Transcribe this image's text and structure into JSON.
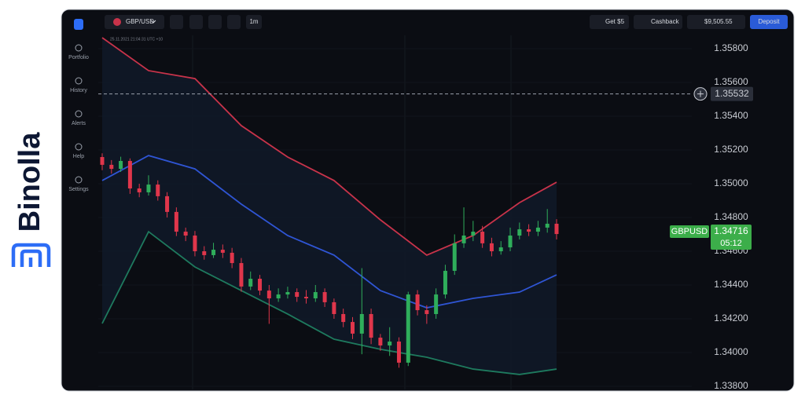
{
  "brand": "Binolla",
  "sidebar": [
    "Portfolio",
    "History",
    "Alerts",
    "Help",
    "Settings"
  ],
  "topbar": {
    "pair": "GBP/USD",
    "timeframe": "1m",
    "bonus": "Get $5",
    "cashback": "Cashback",
    "balance": "$9,505.55",
    "deposit": "Deposit"
  },
  "chart_data": {
    "type": "candlestick",
    "timestamp": "25.11.2021 21:04:31 UTC +10",
    "symbol": "GBPUSD",
    "timer": "05:12",
    "current_price": 1.35532,
    "last_price": 1.34716,
    "ylim": [
      1.3378,
      1.3588
    ],
    "yticks": [
      {
        "value": 1.358,
        "label": "1.35800"
      },
      {
        "value": 1.356,
        "label": "1.35600"
      },
      {
        "value": 1.354,
        "label": "1.35400"
      },
      {
        "value": 1.352,
        "label": "1.35200"
      },
      {
        "value": 1.35,
        "label": "1.35000"
      },
      {
        "value": 1.348,
        "label": "1.34800"
      },
      {
        "value": 1.346,
        "label": "1.34600"
      },
      {
        "value": 1.344,
        "label": "1.34400"
      },
      {
        "value": 1.342,
        "label": "1.34200"
      },
      {
        "value": 1.34,
        "label": "1.34000"
      },
      {
        "value": 1.338,
        "label": "1.33800"
      }
    ],
    "grid": true,
    "up_color": "#2fae5b",
    "down_color": "#e0364b",
    "open": [
      1.35158,
      1.35112,
      1.35088,
      1.35135,
      1.34972,
      1.34949,
      1.34995,
      1.34926,
      1.34833,
      1.34716,
      1.34693,
      1.346,
      1.34577,
      1.34609,
      1.34591,
      1.3453,
      1.34391,
      1.34437,
      1.34367,
      1.34321,
      1.34344,
      1.34358,
      1.3433,
      1.34321,
      1.34358,
      1.34298,
      1.34228,
      1.34181,
      1.34112,
      1.34228,
      1.34088,
      1.34042,
      1.34065,
      1.3394,
      1.34344,
      1.34251,
      1.34228,
      1.34344,
      1.34484,
      1.34647,
      1.34693,
      1.34716,
      1.34647,
      1.346,
      1.34623,
      1.34693,
      1.3473,
      1.34716,
      1.3474,
      1.34763
    ],
    "high": [
      1.3518,
      1.3514,
      1.3516,
      1.3515,
      1.35,
      1.3505,
      1.3502,
      1.3495,
      1.3486,
      1.3474,
      1.3472,
      1.3463,
      1.3465,
      1.3464,
      1.3462,
      1.3456,
      1.3448,
      1.3446,
      1.344,
      1.3438,
      1.3439,
      1.3438,
      1.3437,
      1.344,
      1.3438,
      1.3432,
      1.3426,
      1.3421,
      1.345,
      1.3426,
      1.3411,
      1.3415,
      1.3409,
      1.3436,
      1.3437,
      1.3428,
      1.3438,
      1.3452,
      1.347,
      1.3486,
      1.3478,
      1.3475,
      1.3468,
      1.3466,
      1.3474,
      1.3477,
      1.3476,
      1.3478,
      1.3485,
      1.3479
    ],
    "low": [
      1.3508,
      1.3506,
      1.3507,
      1.3494,
      1.3492,
      1.3493,
      1.349,
      1.348,
      1.3469,
      1.3466,
      1.3457,
      1.3455,
      1.3456,
      1.3456,
      1.345,
      1.3436,
      1.3437,
      1.3434,
      1.3417,
      1.343,
      1.3432,
      1.343,
      1.3429,
      1.343,
      1.3427,
      1.342,
      1.3415,
      1.3408,
      1.3399,
      1.3405,
      1.3401,
      1.3398,
      1.3391,
      1.3392,
      1.3422,
      1.3417,
      1.342,
      1.3432,
      1.3446,
      1.3462,
      1.3466,
      1.3462,
      1.3457,
      1.3458,
      1.346,
      1.3467,
      1.3469,
      1.3469,
      1.3471,
      1.3467
    ],
    "close": [
      1.35112,
      1.35088,
      1.35135,
      1.34972,
      1.34949,
      1.34995,
      1.34926,
      1.34833,
      1.34716,
      1.34693,
      1.346,
      1.34577,
      1.34609,
      1.34591,
      1.3453,
      1.34391,
      1.34437,
      1.34367,
      1.34321,
      1.34344,
      1.34358,
      1.3433,
      1.34321,
      1.34358,
      1.34298,
      1.34228,
      1.34181,
      1.34112,
      1.34228,
      1.34088,
      1.34042,
      1.34065,
      1.3394,
      1.34344,
      1.34251,
      1.34228,
      1.34344,
      1.34484,
      1.34647,
      1.34693,
      1.34716,
      1.34647,
      1.346,
      1.34623,
      1.34693,
      1.3473,
      1.34716,
      1.3474,
      1.34763,
      1.34702
    ],
    "bands": {
      "x": [
        0,
        5,
        10,
        15,
        20,
        25,
        30,
        35,
        40,
        45,
        49
      ],
      "series": [
        {
          "color": "#c8334a",
          "values": [
            1.35865,
            1.3567,
            1.35623,
            1.35344,
            1.35158,
            1.35019,
            1.34786,
            1.34577,
            1.34693,
            1.34888,
            1.35009
          ]
        },
        {
          "color": "#2f55d4",
          "values": [
            1.35019,
            1.35167,
            1.35088,
            1.34879,
            1.34693,
            1.34577,
            1.34367,
            1.34265,
            1.34321,
            1.34358,
            1.3446
          ]
        },
        {
          "color": "#1e7a5e",
          "values": [
            1.34172,
            1.34716,
            1.34507,
            1.34367,
            1.34228,
            1.34079,
            1.34019,
            1.33972,
            1.33902,
            1.3387,
            1.33902
          ]
        }
      ]
    }
  }
}
